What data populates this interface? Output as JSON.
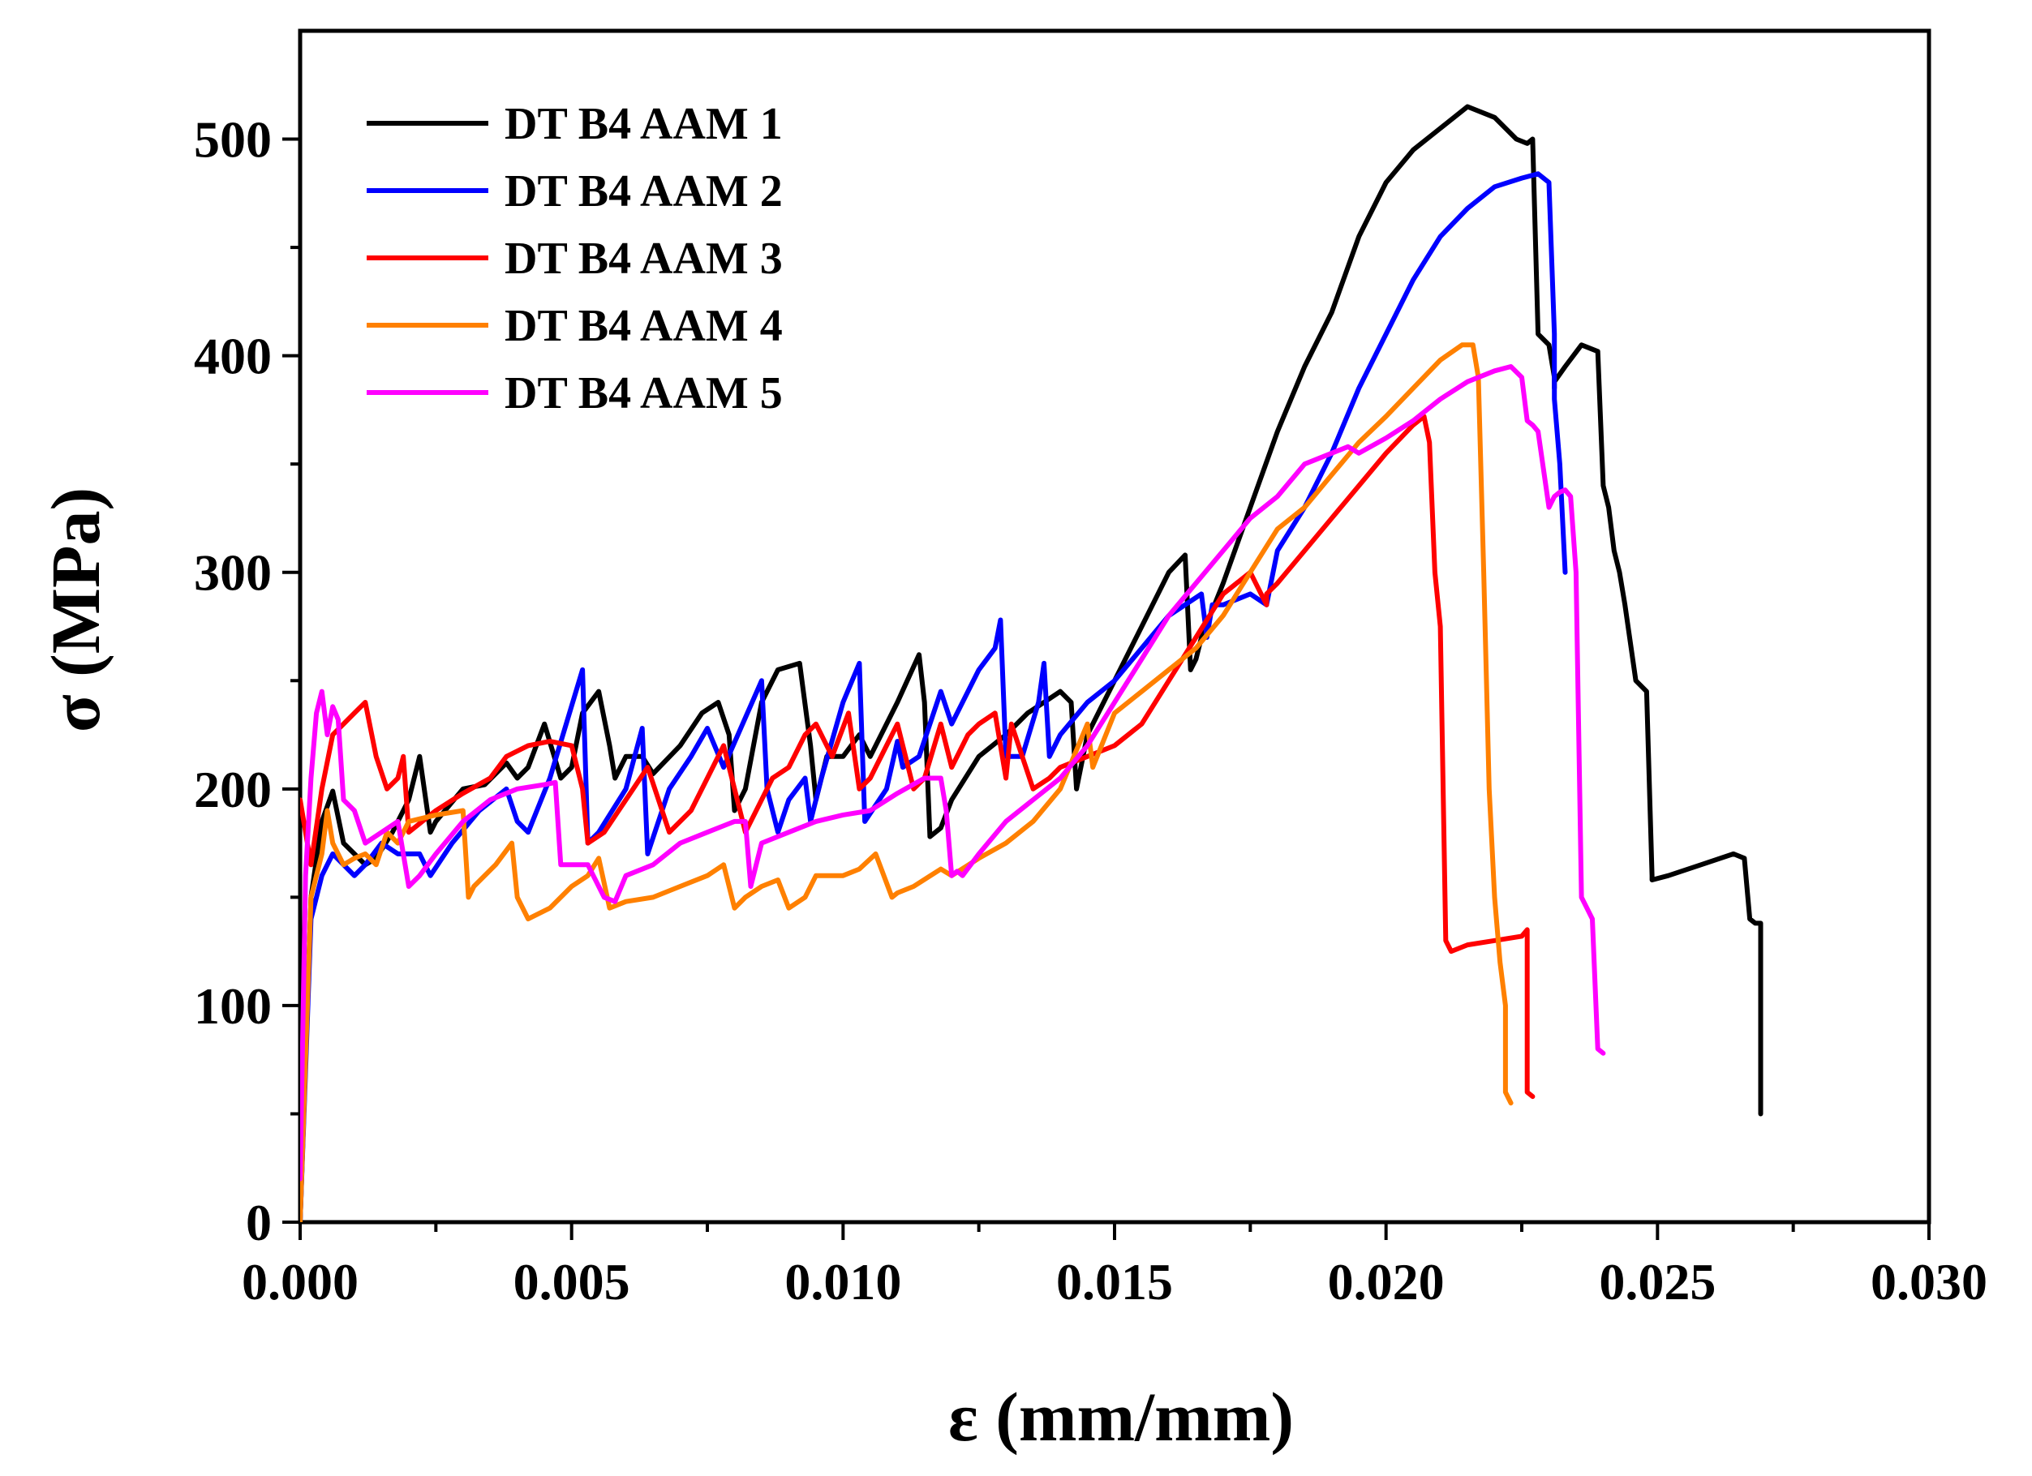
{
  "chart_data": {
    "type": "line",
    "title": "",
    "xlabel": "ε (mm/mm)",
    "ylabel": "σ (MPa)",
    "xlim": [
      0,
      0.03
    ],
    "ylim": [
      0,
      550
    ],
    "xticks": [
      0.0,
      0.005,
      0.01,
      0.015,
      0.02,
      0.025,
      0.03
    ],
    "xtick_labels": [
      "0.000",
      "0.005",
      "0.010",
      "0.015",
      "0.020",
      "0.025",
      "0.030"
    ],
    "yticks": [
      0,
      100,
      200,
      300,
      400,
      500
    ],
    "ytick_labels": [
      "0",
      "100",
      "200",
      "300",
      "400",
      "500"
    ],
    "grid": false,
    "legend_position": "top-left",
    "series": [
      {
        "name": "DT B4 AAM 1",
        "color": "#000000",
        "x": [
          0,
          0.0002,
          0.0004,
          0.0006,
          0.0008,
          0.001,
          0.0012,
          0.0014,
          0.0017,
          0.002,
          0.0022,
          0.0024,
          0.0025,
          0.003,
          0.0034,
          0.0038,
          0.004,
          0.0042,
          0.0045,
          0.0048,
          0.005,
          0.0052,
          0.0055,
          0.0057,
          0.0058,
          0.006,
          0.0063,
          0.0065,
          0.007,
          0.0074,
          0.0077,
          0.0079,
          0.008,
          0.0082,
          0.0085,
          0.0088,
          0.0092,
          0.0094,
          0.0095,
          0.0097,
          0.01,
          0.0103,
          0.0105,
          0.011,
          0.0114,
          0.0115,
          0.0116,
          0.0118,
          0.012,
          0.0125,
          0.013,
          0.0134,
          0.0137,
          0.014,
          0.0142,
          0.0143,
          0.0145,
          0.015,
          0.0155,
          0.016,
          0.0163,
          0.0164,
          0.0165,
          0.0166,
          0.017,
          0.0175,
          0.018,
          0.0185,
          0.019,
          0.0195,
          0.02,
          0.0205,
          0.021,
          0.0215,
          0.022,
          0.0224,
          0.0226,
          0.0227,
          0.0228,
          0.023,
          0.0231,
          0.0231,
          0.0231,
          0.0233,
          0.0236,
          0.0239,
          0.024,
          0.0241,
          0.0242,
          0.0243,
          0.0244,
          0.0246,
          0.0248,
          0.0249,
          0.0249,
          0.0252,
          0.0258,
          0.0264,
          0.0266,
          0.0267,
          0.0268,
          0.0269,
          0.0269
        ],
        "y": [
          0,
          150,
          185,
          199,
          175,
          170,
          165,
          168,
          180,
          195,
          215,
          180,
          185,
          200,
          202,
          212,
          205,
          210,
          230,
          205,
          210,
          235,
          245,
          220,
          205,
          215,
          215,
          207,
          220,
          235,
          240,
          225,
          190,
          200,
          240,
          255,
          258,
          220,
          195,
          215,
          215,
          225,
          215,
          240,
          262,
          240,
          178,
          182,
          195,
          215,
          225,
          235,
          240,
          245,
          240,
          200,
          225,
          250,
          275,
          300,
          308,
          255,
          260,
          270,
          295,
          330,
          365,
          395,
          420,
          455,
          480,
          495,
          505,
          515,
          510,
          500,
          498,
          500,
          410,
          405,
          390,
          385,
          388,
          395,
          405,
          402,
          340,
          330,
          310,
          300,
          285,
          250,
          245,
          160,
          158,
          160,
          165,
          170,
          168,
          140,
          138,
          138,
          50
        ]
      },
      {
        "name": "DT B4 AAM 2",
        "color": "#0000ff",
        "x": [
          0,
          0.0002,
          0.0004,
          0.0006,
          0.0008,
          0.001,
          0.0012,
          0.0015,
          0.0018,
          0.0022,
          0.0023,
          0.0024,
          0.0028,
          0.0033,
          0.0038,
          0.004,
          0.0042,
          0.0046,
          0.0052,
          0.0053,
          0.0055,
          0.006,
          0.0063,
          0.0064,
          0.0068,
          0.0072,
          0.0075,
          0.0078,
          0.0085,
          0.0086,
          0.0088,
          0.009,
          0.0093,
          0.0094,
          0.0096,
          0.01,
          0.0103,
          0.0104,
          0.0108,
          0.011,
          0.0111,
          0.0114,
          0.0118,
          0.012,
          0.0125,
          0.0128,
          0.0129,
          0.013,
          0.0133,
          0.0136,
          0.0137,
          0.0138,
          0.014,
          0.0145,
          0.015,
          0.0155,
          0.016,
          0.0166,
          0.0167,
          0.0168,
          0.017,
          0.0175,
          0.0178,
          0.018,
          0.0185,
          0.019,
          0.0195,
          0.02,
          0.0205,
          0.021,
          0.0215,
          0.022,
          0.0225,
          0.0228,
          0.023,
          0.0231,
          0.0231,
          0.0232,
          0.0233
        ],
        "y": [
          0,
          140,
          160,
          170,
          165,
          160,
          165,
          175,
          170,
          170,
          165,
          160,
          175,
          190,
          200,
          185,
          180,
          205,
          255,
          175,
          180,
          200,
          228,
          170,
          200,
          215,
          228,
          210,
          250,
          200,
          180,
          195,
          205,
          185,
          205,
          240,
          258,
          185,
          200,
          222,
          210,
          215,
          245,
          230,
          255,
          265,
          278,
          215,
          215,
          240,
          258,
          215,
          225,
          240,
          250,
          265,
          280,
          290,
          270,
          285,
          285,
          290,
          285,
          310,
          330,
          355,
          385,
          410,
          435,
          455,
          468,
          478,
          482,
          484,
          480,
          410,
          380,
          350,
          300
        ]
      },
      {
        "name": "DT B4 AAM 3",
        "color": "#ff0000",
        "x": [
          0,
          0.0002,
          0.0004,
          0.0006,
          0.0008,
          0.001,
          0.0012,
          0.0014,
          0.0016,
          0.0018,
          0.0019,
          0.002,
          0.0025,
          0.003,
          0.0035,
          0.0038,
          0.0042,
          0.0046,
          0.005,
          0.0052,
          0.0053,
          0.0056,
          0.006,
          0.0064,
          0.0066,
          0.0068,
          0.0072,
          0.0075,
          0.0078,
          0.0082,
          0.0085,
          0.0087,
          0.009,
          0.0093,
          0.0095,
          0.0098,
          0.0101,
          0.0103,
          0.0105,
          0.0108,
          0.011,
          0.0113,
          0.0115,
          0.0118,
          0.012,
          0.0123,
          0.0125,
          0.0128,
          0.013,
          0.0131,
          0.0133,
          0.0135,
          0.0138,
          0.014,
          0.0145,
          0.015,
          0.0155,
          0.016,
          0.0165,
          0.017,
          0.0175,
          0.0178,
          0.0178,
          0.018,
          0.0185,
          0.019,
          0.0195,
          0.02,
          0.0205,
          0.0207,
          0.0208,
          0.0209,
          0.021,
          0.0211,
          0.0212,
          0.0215,
          0.022,
          0.0225,
          0.0226,
          0.0226,
          0.0227
        ],
        "y": [
          195,
          165,
          200,
          225,
          230,
          235,
          240,
          215,
          200,
          205,
          215,
          180,
          190,
          198,
          205,
          215,
          220,
          222,
          220,
          200,
          175,
          180,
          195,
          210,
          195,
          180,
          190,
          205,
          220,
          180,
          195,
          205,
          210,
          225,
          230,
          215,
          235,
          200,
          205,
          220,
          230,
          200,
          205,
          230,
          210,
          225,
          230,
          235,
          205,
          230,
          215,
          200,
          205,
          210,
          215,
          220,
          230,
          250,
          270,
          290,
          300,
          285,
          290,
          295,
          310,
          325,
          340,
          355,
          368,
          372,
          360,
          300,
          275,
          130,
          125,
          128,
          130,
          132,
          135,
          60,
          58
        ]
      },
      {
        "name": "DT B4 AAM 4",
        "color": "#ff8000",
        "x": [
          0,
          0.0002,
          0.0004,
          0.0005,
          0.0006,
          0.0008,
          0.001,
          0.0012,
          0.0014,
          0.0016,
          0.0018,
          0.002,
          0.0025,
          0.003,
          0.0031,
          0.0032,
          0.0036,
          0.0039,
          0.004,
          0.0042,
          0.0046,
          0.005,
          0.0053,
          0.0055,
          0.0057,
          0.006,
          0.0065,
          0.007,
          0.0075,
          0.0078,
          0.008,
          0.0082,
          0.0085,
          0.0088,
          0.009,
          0.0093,
          0.0095,
          0.01,
          0.0103,
          0.0106,
          0.0109,
          0.011,
          0.0113,
          0.0118,
          0.012,
          0.0125,
          0.013,
          0.0135,
          0.014,
          0.0145,
          0.0146,
          0.015,
          0.0155,
          0.016,
          0.0165,
          0.017,
          0.0175,
          0.018,
          0.0185,
          0.019,
          0.0195,
          0.02,
          0.0205,
          0.021,
          0.0214,
          0.0216,
          0.0217,
          0.0218,
          0.0219,
          0.022,
          0.0221,
          0.0222,
          0.0222,
          0.0223
        ],
        "y": [
          0,
          150,
          170,
          190,
          175,
          165,
          168,
          170,
          165,
          180,
          175,
          185,
          188,
          190,
          150,
          155,
          165,
          175,
          150,
          140,
          145,
          155,
          160,
          168,
          145,
          148,
          150,
          155,
          160,
          165,
          145,
          150,
          155,
          158,
          145,
          150,
          160,
          160,
          163,
          170,
          150,
          152,
          155,
          163,
          160,
          168,
          175,
          185,
          200,
          230,
          210,
          235,
          245,
          255,
          265,
          280,
          300,
          320,
          330,
          345,
          360,
          372,
          385,
          398,
          405,
          405,
          390,
          300,
          200,
          150,
          120,
          100,
          60,
          55
        ]
      },
      {
        "name": "DT B4 AAM 5",
        "color": "#ff00ff",
        "x": [
          0,
          0.0001,
          0.0002,
          0.0003,
          0.0004,
          0.0005,
          0.0006,
          0.0007,
          0.0008,
          0.001,
          0.0012,
          0.0015,
          0.0018,
          0.002,
          0.0022,
          0.0025,
          0.003,
          0.0035,
          0.004,
          0.0045,
          0.0047,
          0.0048,
          0.005,
          0.0053,
          0.0056,
          0.0058,
          0.006,
          0.0065,
          0.007,
          0.0075,
          0.008,
          0.0082,
          0.0083,
          0.0085,
          0.009,
          0.0095,
          0.01,
          0.0105,
          0.011,
          0.0115,
          0.0118,
          0.0119,
          0.012,
          0.0121,
          0.0122,
          0.0125,
          0.013,
          0.0135,
          0.014,
          0.0145,
          0.015,
          0.0155,
          0.016,
          0.0165,
          0.017,
          0.0175,
          0.018,
          0.0185,
          0.019,
          0.0193,
          0.0195,
          0.02,
          0.0205,
          0.021,
          0.0215,
          0.022,
          0.0223,
          0.0225,
          0.0226,
          0.0227,
          0.0228,
          0.023,
          0.0231,
          0.0232,
          0.0233,
          0.0234,
          0.0235,
          0.0236,
          0.0237,
          0.0238,
          0.0239,
          0.024,
          0.024
        ],
        "y": [
          20,
          160,
          205,
          235,
          245,
          225,
          238,
          232,
          195,
          190,
          175,
          180,
          185,
          155,
          160,
          170,
          185,
          195,
          200,
          202,
          203,
          165,
          165,
          165,
          150,
          148,
          160,
          165,
          175,
          180,
          185,
          185,
          155,
          175,
          180,
          185,
          188,
          190,
          198,
          205,
          205,
          190,
          160,
          162,
          160,
          170,
          185,
          195,
          205,
          220,
          240,
          260,
          280,
          295,
          310,
          325,
          335,
          350,
          355,
          358,
          355,
          362,
          370,
          380,
          388,
          393,
          395,
          390,
          370,
          368,
          365,
          330,
          335,
          337,
          338,
          335,
          300,
          150,
          145,
          140,
          80,
          78,
          78
        ]
      }
    ]
  }
}
